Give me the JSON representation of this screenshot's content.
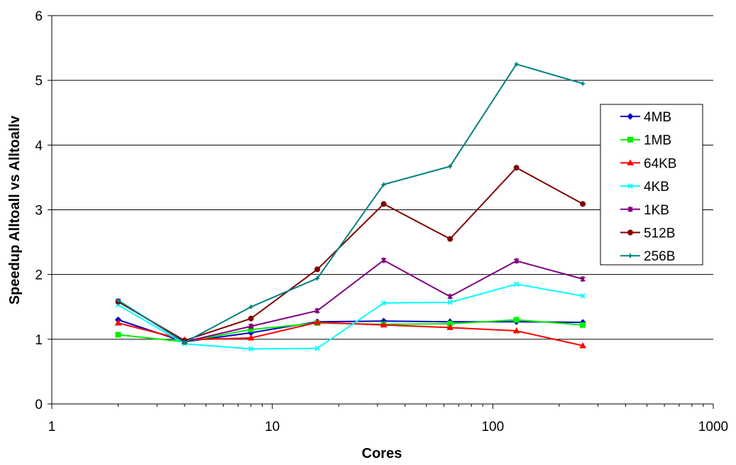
{
  "chart_data": {
    "type": "line",
    "xlabel": "Cores",
    "ylabel": "Speedup Alltoall vs Alltoallv",
    "xscale": "log",
    "xlim": [
      1,
      1000
    ],
    "ylim": [
      0,
      6
    ],
    "x_ticks": [
      "1",
      "10",
      "100",
      "1000"
    ],
    "y_ticks": [
      "0",
      "1",
      "2",
      "3",
      "4",
      "5",
      "6"
    ],
    "grid": "horizontal",
    "legend_position": "right",
    "x": [
      2,
      4,
      8,
      16,
      32,
      64,
      128,
      256
    ],
    "series": [
      {
        "name": "4MB",
        "color": "#0000cc",
        "marker": "diamond",
        "values": [
          1.3,
          0.96,
          1.1,
          1.27,
          1.28,
          1.27,
          1.27,
          1.26
        ]
      },
      {
        "name": "1MB",
        "color": "#00ee00",
        "marker": "square",
        "values": [
          1.07,
          0.96,
          1.15,
          1.25,
          1.23,
          1.24,
          1.3,
          1.22
        ]
      },
      {
        "name": "64KB",
        "color": "#ff0000",
        "marker": "triangle",
        "values": [
          1.25,
          0.99,
          1.02,
          1.26,
          1.22,
          1.18,
          1.13,
          0.9
        ]
      },
      {
        "name": "4KB",
        "color": "#00ffff",
        "marker": "x",
        "values": [
          1.53,
          0.93,
          0.85,
          0.86,
          1.56,
          1.57,
          1.85,
          1.67
        ]
      },
      {
        "name": "1KB",
        "color": "#800080",
        "marker": "star",
        "values": [
          1.59,
          0.96,
          1.2,
          1.44,
          2.22,
          1.66,
          2.21,
          1.93
        ]
      },
      {
        "name": "512B",
        "color": "#800000",
        "marker": "circle",
        "values": [
          1.58,
          0.98,
          1.32,
          2.08,
          3.09,
          2.55,
          3.65,
          3.09
        ]
      },
      {
        "name": "256B",
        "color": "#008080",
        "marker": "plus",
        "values": [
          1.6,
          0.95,
          1.5,
          1.94,
          3.39,
          3.67,
          5.25,
          4.95
        ]
      }
    ]
  }
}
